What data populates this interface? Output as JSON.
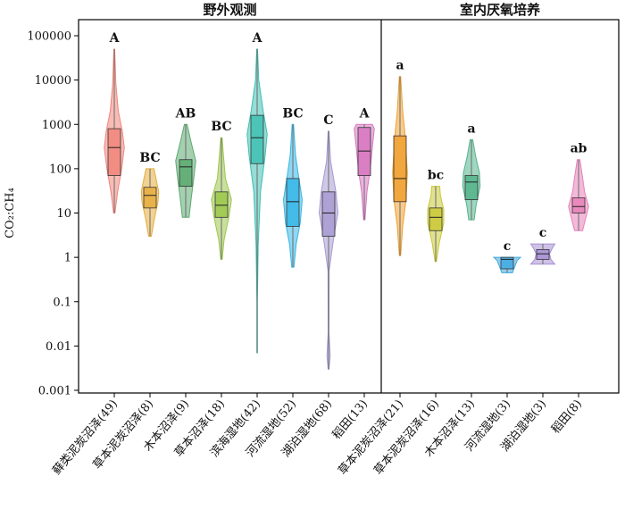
{
  "chart_data": {
    "type": "violin",
    "scale": "log10",
    "ylabel": "CO₂:CH₄",
    "ylim": [
      0.001,
      100000
    ],
    "yticks": [
      {
        "value": 0.001,
        "label": "0.001"
      },
      {
        "value": 0.01,
        "label": "0.01"
      },
      {
        "value": 0.1,
        "label": "0.1"
      },
      {
        "value": 1,
        "label": "1"
      },
      {
        "value": 10,
        "label": "10"
      },
      {
        "value": 100,
        "label": "100"
      },
      {
        "value": 1000,
        "label": "1000"
      },
      {
        "value": 10000,
        "label": "10000"
      },
      {
        "value": 100000,
        "label": "100000"
      }
    ],
    "panels": [
      {
        "title": "野外观测",
        "groups": [
          {
            "label": "藓类泥炭沼泽(49)",
            "letter": "A",
            "color": "#f0857a",
            "min": 10,
            "q1": 70,
            "median": 300,
            "q3": 800,
            "max": 50000,
            "shape": [
              [
                10,
                0.05
              ],
              [
                30,
                0.25
              ],
              [
                100,
                0.55
              ],
              [
                300,
                0.75
              ],
              [
                700,
                0.6
              ],
              [
                2000,
                0.3
              ],
              [
                8000,
                0.12
              ],
              [
                50000,
                0.03
              ]
            ]
          },
          {
            "label": "草本泥炭沼泽(8)",
            "letter": "BC",
            "color": "#e6ad3d",
            "min": 3,
            "q1": 13,
            "median": 25,
            "q3": 38,
            "max": 100,
            "shape": [
              [
                3,
                0.1
              ],
              [
                8,
                0.35
              ],
              [
                18,
                0.6
              ],
              [
                30,
                0.65
              ],
              [
                60,
                0.45
              ],
              [
                100,
                0.3
              ]
            ]
          },
          {
            "label": "木本沼泽(9)",
            "letter": "AB",
            "color": "#5aaa6f",
            "min": 8,
            "q1": 40,
            "median": 110,
            "q3": 160,
            "max": 1000,
            "shape": [
              [
                8,
                0.25
              ],
              [
                20,
                0.4
              ],
              [
                60,
                0.6
              ],
              [
                150,
                0.75
              ],
              [
                400,
                0.4
              ],
              [
                1000,
                0.1
              ]
            ]
          },
          {
            "label": "草本沼泽(18)",
            "letter": "BC",
            "color": "#9bc74a",
            "min": 0.9,
            "q1": 8,
            "median": 15,
            "q3": 30,
            "max": 500,
            "shape": [
              [
                0.9,
                0.05
              ],
              [
                2.5,
                0.2
              ],
              [
                8,
                0.55
              ],
              [
                20,
                0.75
              ],
              [
                60,
                0.3
              ],
              [
                200,
                0.15
              ],
              [
                500,
                0.05
              ]
            ]
          },
          {
            "label": "滨海湿地(42)",
            "letter": "A",
            "color": "#3fbfb2",
            "min": 0.007,
            "q1": 130,
            "median": 500,
            "q3": 1600,
            "max": 50000,
            "shape": [
              [
                0.007,
                0.02
              ],
              [
                0.1,
                0.02
              ],
              [
                2,
                0.08
              ],
              [
                30,
                0.25
              ],
              [
                200,
                0.6
              ],
              [
                600,
                0.75
              ],
              [
                2000,
                0.45
              ],
              [
                10000,
                0.12
              ],
              [
                50000,
                0.03
              ]
            ]
          },
          {
            "label": "河流湿地(52)",
            "letter": "BC",
            "color": "#35b6e6",
            "min": 0.6,
            "q1": 5,
            "median": 18,
            "q3": 60,
            "max": 1000,
            "shape": [
              [
                0.6,
                0.08
              ],
              [
                2,
                0.25
              ],
              [
                6,
                0.55
              ],
              [
                20,
                0.7
              ],
              [
                60,
                0.45
              ],
              [
                200,
                0.2
              ],
              [
                1000,
                0.05
              ]
            ]
          },
          {
            "label": "湖泊湿地(68)",
            "letter": "C",
            "color": "#a79ad1",
            "min": 0.003,
            "q1": 3,
            "median": 10,
            "q3": 30,
            "max": 700,
            "shape": [
              [
                0.003,
                0.03
              ],
              [
                0.006,
                0.12
              ],
              [
                0.02,
                0.03
              ],
              [
                0.5,
                0.04
              ],
              [
                3,
                0.4
              ],
              [
                10,
                0.7
              ],
              [
                30,
                0.55
              ],
              [
                150,
                0.15
              ],
              [
                700,
                0.03
              ]
            ]
          },
          {
            "label": "稻田(13)",
            "letter": "A",
            "color": "#d776c0",
            "min": 7,
            "q1": 70,
            "median": 250,
            "q3": 850,
            "max": 1000,
            "shape": [
              [
                7,
                0.05
              ],
              [
                30,
                0.2
              ],
              [
                100,
                0.45
              ],
              [
                300,
                0.6
              ],
              [
                800,
                0.75
              ],
              [
                1000,
                0.6
              ]
            ]
          }
        ]
      },
      {
        "title": "室内厌氧培养",
        "groups": [
          {
            "label": "草本泥炭沼泽(21)",
            "letter": "a",
            "color": "#f0a030",
            "min": 1.1,
            "q1": 18,
            "median": 60,
            "q3": 550,
            "max": 12000,
            "shape": [
              [
                1.1,
                0.05
              ],
              [
                5,
                0.2
              ],
              [
                20,
                0.45
              ],
              [
                80,
                0.55
              ],
              [
                500,
                0.4
              ],
              [
                2000,
                0.2
              ],
              [
                12000,
                0.05
              ]
            ]
          },
          {
            "label": "草本泥炭沼泽(16)",
            "letter": "bc",
            "color": "#c9c836",
            "min": 0.8,
            "q1": 4,
            "median": 8,
            "q3": 13,
            "max": 40,
            "shape": [
              [
                0.8,
                0.05
              ],
              [
                2,
                0.25
              ],
              [
                6,
                0.6
              ],
              [
                12,
                0.6
              ],
              [
                25,
                0.35
              ],
              [
                40,
                0.3
              ]
            ]
          },
          {
            "label": "木本沼泽(13)",
            "letter": "a",
            "color": "#52b48a",
            "min": 7,
            "q1": 20,
            "median": 50,
            "q3": 70,
            "max": 450,
            "shape": [
              [
                7,
                0.2
              ],
              [
                15,
                0.35
              ],
              [
                40,
                0.65
              ],
              [
                80,
                0.6
              ],
              [
                200,
                0.3
              ],
              [
                450,
                0.1
              ]
            ]
          },
          {
            "label": "河流湿地(3)",
            "letter": "c",
            "color": "#3fa8e0",
            "min": 0.45,
            "q1": 0.55,
            "median": 0.9,
            "q3": 1.0,
            "max": 1.0,
            "shape": [
              [
                0.45,
                0.4
              ],
              [
                0.6,
                0.55
              ],
              [
                0.85,
                0.75
              ],
              [
                1.0,
                1.0
              ]
            ]
          },
          {
            "label": "湖泊湿地(3)",
            "letter": "c",
            "color": "#a890d4",
            "min": 0.7,
            "q1": 0.9,
            "median": 1.2,
            "q3": 1.5,
            "max": 2.0,
            "shape": [
              [
                0.7,
                0.9
              ],
              [
                0.9,
                0.6
              ],
              [
                1.2,
                0.5
              ],
              [
                1.6,
                0.7
              ],
              [
                2.0,
                0.9
              ]
            ]
          },
          {
            "label": "稻田(8)",
            "letter": "ab",
            "color": "#e880b8",
            "min": 4,
            "q1": 10,
            "median": 14,
            "q3": 22,
            "max": 160,
            "shape": [
              [
                4,
                0.3
              ],
              [
                8,
                0.55
              ],
              [
                14,
                0.75
              ],
              [
                30,
                0.45
              ],
              [
                80,
                0.25
              ],
              [
                160,
                0.1
              ]
            ]
          }
        ]
      }
    ]
  }
}
